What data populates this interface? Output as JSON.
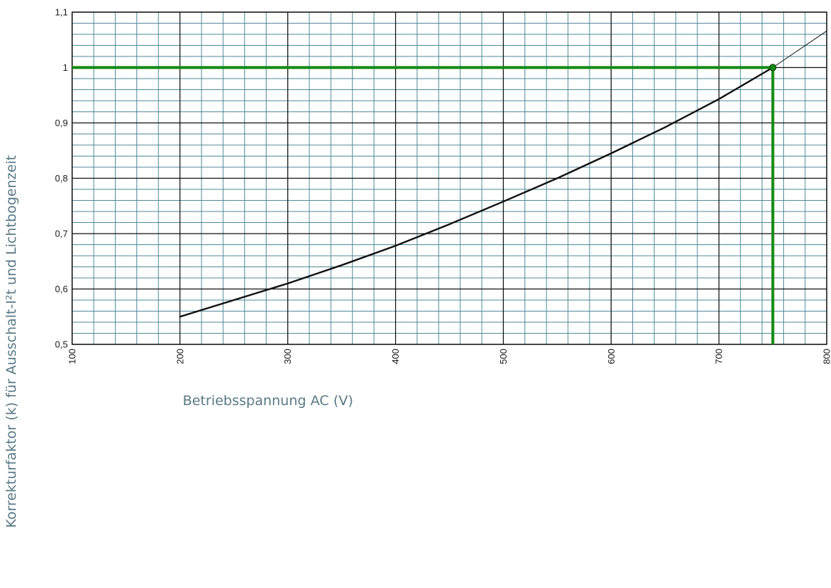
{
  "chart_data": {
    "type": "line",
    "xlabel": "Betriebsspannung AC (V)",
    "ylabel": "Korrekturfaktor (k) für Ausschalt-I²t und Lichtbogenzeit",
    "xlim": [
      100,
      800
    ],
    "ylim": [
      0.5,
      1.1
    ],
    "x_ticks": [
      100,
      200,
      300,
      400,
      500,
      600,
      700,
      800
    ],
    "x_tick_labels": [
      "100",
      "200",
      "300",
      "400",
      "500",
      "600",
      "700",
      "800"
    ],
    "y_ticks": [
      0.5,
      0.6,
      0.7,
      0.8,
      0.9,
      1.0,
      1.1
    ],
    "y_tick_labels": [
      "0,5",
      "0,6",
      "0,7",
      "0,8",
      "0,9",
      "1",
      "1,1"
    ],
    "grid": true,
    "minor_grid": {
      "x_step": 20,
      "y_step": 0.02
    },
    "series": [
      {
        "color": "#111111",
        "x": [
          200,
          250,
          300,
          350,
          400,
          450,
          500,
          550,
          600,
          650,
          700,
          750
        ],
        "y": [
          0.55,
          0.58,
          0.61,
          0.643,
          0.678,
          0.717,
          0.758,
          0.8,
          0.845,
          0.892,
          0.943,
          1.0
        ]
      },
      {
        "style": "thin-extension",
        "color": "#111111",
        "x": [
          750,
          800
        ],
        "y": [
          1.0,
          1.066
        ]
      }
    ],
    "annotations": [
      {
        "type": "reference-lines",
        "color": "#118a11",
        "x": 750,
        "y": 1.0,
        "marker": true
      }
    ],
    "colors": {
      "minor_grid": "#4f8a9a",
      "major_grid": "#111111",
      "highlight": "#118a11",
      "axis_title": "#5a7a86"
    }
  }
}
